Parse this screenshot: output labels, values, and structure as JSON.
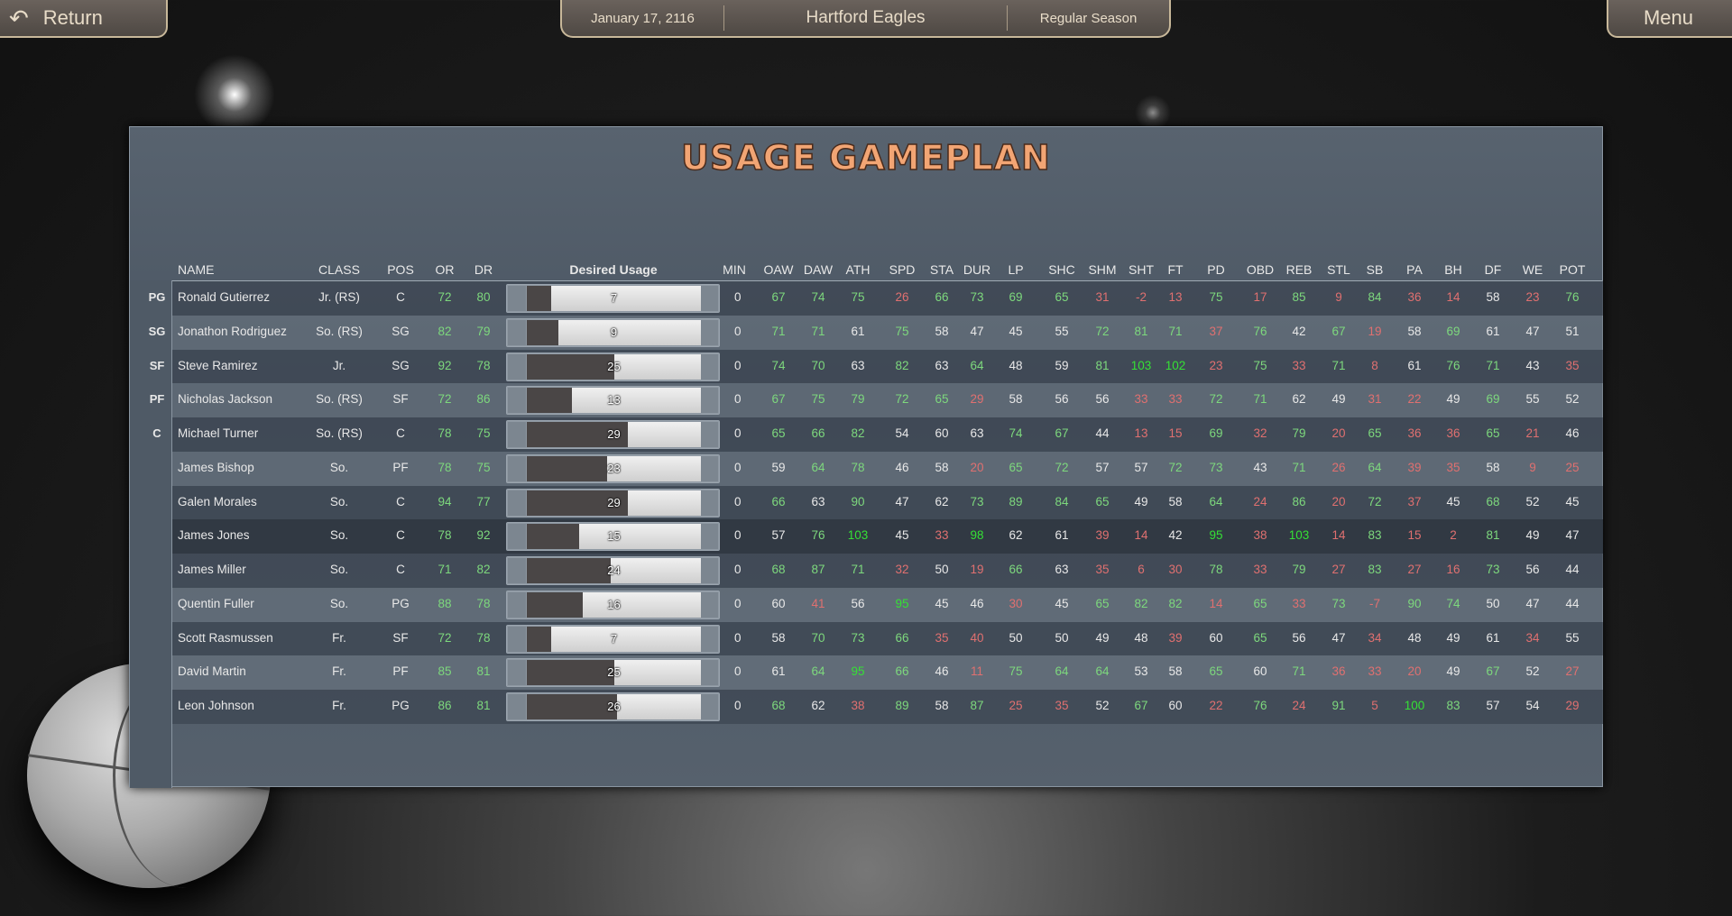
{
  "topbar": {
    "return_label": "Return",
    "return_icon": "undo-arrow-icon",
    "date": "January 17, 2116",
    "team": "Hartford Eagles",
    "season": "Regular Season",
    "menu_label": "Menu"
  },
  "title": "USAGE GAMEPLAN",
  "colors": {
    "accent": "#f2a574",
    "good": "#7dd87d",
    "great": "#35e035",
    "bad": "#e07070",
    "neutral": "#e8e8e8"
  },
  "headers": {
    "name": "NAME",
    "class": "CLASS",
    "pos": "POS",
    "or": "OR",
    "dr": "DR",
    "usage": "Desired Usage",
    "min": "MIN"
  },
  "stat_columns": [
    "OAW",
    "DAW",
    "ATH",
    "SPD",
    "STA",
    "DUR",
    "LP",
    "SHC",
    "SHM",
    "SHT",
    "FT",
    "PD",
    "OBD",
    "REB",
    "STL",
    "SB",
    "PA",
    "BH",
    "DF",
    "WE",
    "POT"
  ],
  "usage_max": 50,
  "selected_row": 7,
  "players": [
    {
      "slot": "PG",
      "name": "Ronald Gutierrez",
      "class": "Jr. (RS)",
      "pos": "C",
      "or": 72,
      "dr": 80,
      "usage": 7,
      "min": 0,
      "stats": [
        67,
        74,
        75,
        26,
        66,
        73,
        69,
        65,
        31,
        -2,
        13,
        75,
        17,
        85,
        9,
        84,
        36,
        14,
        58,
        23,
        76
      ]
    },
    {
      "slot": "SG",
      "name": "Jonathon Rodriguez",
      "class": "So. (RS)",
      "pos": "SG",
      "or": 82,
      "dr": 79,
      "usage": 9,
      "min": 0,
      "stats": [
        71,
        71,
        61,
        75,
        58,
        47,
        45,
        55,
        72,
        81,
        71,
        37,
        76,
        42,
        67,
        19,
        58,
        69,
        61,
        47,
        51
      ]
    },
    {
      "slot": "SF",
      "name": "Steve Ramirez",
      "class": "Jr.",
      "pos": "SG",
      "or": 92,
      "dr": 78,
      "usage": 25,
      "min": 0,
      "stats": [
        74,
        70,
        63,
        82,
        63,
        64,
        48,
        59,
        81,
        103,
        102,
        23,
        75,
        33,
        71,
        8,
        61,
        76,
        71,
        43,
        35
      ]
    },
    {
      "slot": "PF",
      "name": "Nicholas Jackson",
      "class": "So. (RS)",
      "pos": "SF",
      "or": 72,
      "dr": 86,
      "usage": 13,
      "min": 0,
      "stats": [
        67,
        75,
        79,
        72,
        65,
        29,
        58,
        56,
        56,
        33,
        33,
        72,
        71,
        62,
        49,
        31,
        22,
        49,
        69,
        55,
        52
      ]
    },
    {
      "slot": "C",
      "name": "Michael Turner",
      "class": "So. (RS)",
      "pos": "C",
      "or": 78,
      "dr": 75,
      "usage": 29,
      "min": 0,
      "stats": [
        65,
        66,
        82,
        54,
        60,
        63,
        74,
        67,
        44,
        13,
        15,
        69,
        32,
        79,
        20,
        65,
        36,
        36,
        65,
        21,
        46
      ]
    },
    {
      "slot": "",
      "name": "James Bishop",
      "class": "So.",
      "pos": "PF",
      "or": 78,
      "dr": 75,
      "usage": 23,
      "min": 0,
      "stats": [
        59,
        64,
        78,
        46,
        58,
        20,
        65,
        72,
        57,
        57,
        72,
        73,
        43,
        71,
        26,
        64,
        39,
        35,
        58,
        9,
        25
      ]
    },
    {
      "slot": "",
      "name": "Galen Morales",
      "class": "So.",
      "pos": "C",
      "or": 94,
      "dr": 77,
      "usage": 29,
      "min": 0,
      "stats": [
        66,
        63,
        90,
        47,
        62,
        73,
        89,
        84,
        65,
        49,
        58,
        64,
        24,
        86,
        20,
        72,
        37,
        45,
        68,
        52,
        45
      ]
    },
    {
      "slot": "",
      "name": "James Jones",
      "class": "So.",
      "pos": "C",
      "or": 78,
      "dr": 92,
      "usage": 15,
      "min": 0,
      "stats": [
        57,
        76,
        103,
        45,
        33,
        98,
        62,
        61,
        39,
        14,
        42,
        95,
        38,
        103,
        14,
        83,
        15,
        2,
        81,
        49,
        47
      ]
    },
    {
      "slot": "",
      "name": "James Miller",
      "class": "So.",
      "pos": "C",
      "or": 71,
      "dr": 82,
      "usage": 24,
      "min": 0,
      "stats": [
        68,
        87,
        71,
        32,
        50,
        19,
        66,
        63,
        35,
        6,
        30,
        78,
        33,
        79,
        27,
        83,
        27,
        16,
        73,
        56,
        44
      ]
    },
    {
      "slot": "",
      "name": "Quentin Fuller",
      "class": "So.",
      "pos": "PG",
      "or": 88,
      "dr": 78,
      "usage": 16,
      "min": 0,
      "stats": [
        60,
        41,
        56,
        95,
        45,
        46,
        30,
        45,
        65,
        82,
        82,
        14,
        65,
        33,
        73,
        -7,
        90,
        74,
        50,
        47,
        44
      ]
    },
    {
      "slot": "",
      "name": "Scott Rasmussen",
      "class": "Fr.",
      "pos": "SF",
      "or": 72,
      "dr": 78,
      "usage": 7,
      "min": 0,
      "stats": [
        58,
        70,
        73,
        66,
        35,
        40,
        50,
        50,
        49,
        48,
        39,
        60,
        65,
        56,
        47,
        34,
        48,
        49,
        61,
        34,
        55
      ]
    },
    {
      "slot": "",
      "name": "David Martin",
      "class": "Fr.",
      "pos": "PF",
      "or": 85,
      "dr": 81,
      "usage": 25,
      "min": 0,
      "stats": [
        61,
        64,
        95,
        66,
        46,
        11,
        75,
        64,
        64,
        53,
        58,
        65,
        60,
        71,
        36,
        33,
        20,
        49,
        67,
        52,
        27
      ]
    },
    {
      "slot": "",
      "name": "Leon Johnson",
      "class": "Fr.",
      "pos": "PG",
      "or": 86,
      "dr": 81,
      "usage": 26,
      "min": 0,
      "stats": [
        68,
        62,
        38,
        89,
        58,
        87,
        25,
        35,
        52,
        67,
        60,
        22,
        76,
        24,
        91,
        5,
        100,
        83,
        57,
        54,
        29
      ]
    }
  ]
}
